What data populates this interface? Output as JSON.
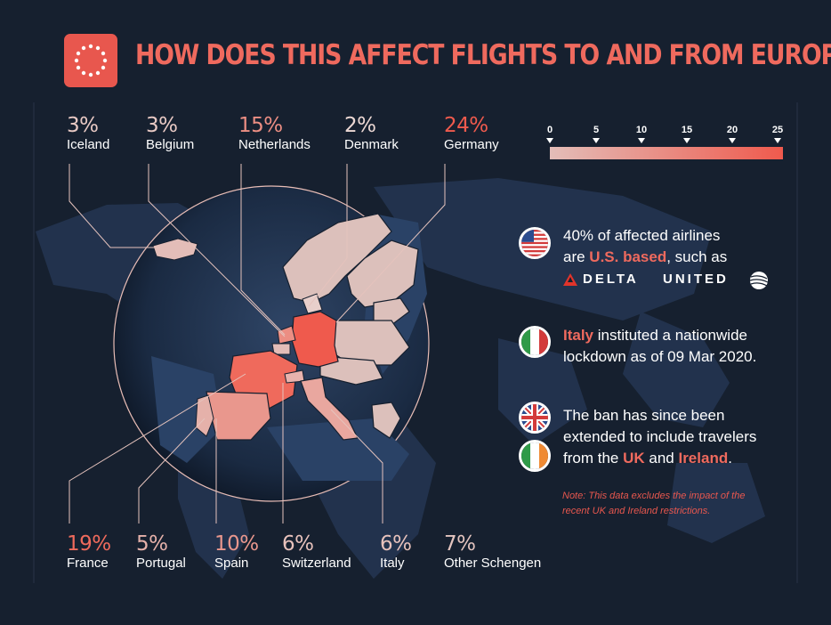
{
  "title": "HOW DOES THIS AFFECT FLIGHTS TO AND FROM EUROPE?",
  "colors": {
    "background": "#16202f",
    "accent": "#ef6a5e",
    "scale_low": "#e3bdb8",
    "scale_high": "#ef5a4d"
  },
  "icons": {
    "badge": "eu-stars-icon",
    "usa": "usa-flag-icon",
    "italy": "italy-flag-icon",
    "uk": "uk-flag-icon",
    "ireland": "ireland-flag-icon",
    "delta": "delta-logo-icon",
    "united": "united-globe-icon"
  },
  "chart_data": {
    "type": "choropleth-map",
    "unit": "%",
    "categories": [
      "Iceland",
      "Belgium",
      "Netherlands",
      "Denmark",
      "Germany",
      "France",
      "Portugal",
      "Spain",
      "Switzerland",
      "Italy",
      "Other Schengen"
    ],
    "values": [
      3,
      3,
      15,
      2,
      24,
      19,
      5,
      10,
      6,
      6,
      7
    ],
    "labels_top": [
      {
        "country": "Iceland",
        "pct": "3%",
        "value": 3
      },
      {
        "country": "Belgium",
        "pct": "3%",
        "value": 3
      },
      {
        "country": "Netherlands",
        "pct": "15%",
        "value": 15
      },
      {
        "country": "Denmark",
        "pct": "2%",
        "value": 2
      },
      {
        "country": "Germany",
        "pct": "24%",
        "value": 24
      }
    ],
    "labels_bottom": [
      {
        "country": "France",
        "pct": "19%",
        "value": 19
      },
      {
        "country": "Portugal",
        "pct": "5%",
        "value": 5
      },
      {
        "country": "Spain",
        "pct": "10%",
        "value": 10
      },
      {
        "country": "Switzerland",
        "pct": "6%",
        "value": 6
      },
      {
        "country": "Italy",
        "pct": "6%",
        "value": 6
      },
      {
        "country": "Other Schengen",
        "pct": "7%",
        "value": 7
      }
    ],
    "color_scale": {
      "min": 0,
      "max": 25,
      "ticks": [
        "0",
        "5",
        "10",
        "15",
        "20",
        "25"
      ]
    }
  },
  "info": {
    "us": {
      "line1": "40% of affected airlines",
      "line2_pre": "are ",
      "line2_hl": "U.S. based",
      "line2_post": ", such as",
      "airline1": "DELTA",
      "airline2": "UNITED"
    },
    "italy": {
      "line1_hl": "Italy",
      "line1_post": " instituted a nationwide",
      "line2": "lockdown as of 09 Mar 2020."
    },
    "uk": {
      "line1": "The ban has since been",
      "line2": "extended to include travelers",
      "line3_pre": "from the ",
      "line3_hl1": "UK",
      "line3_mid": " and ",
      "line3_hl2": "Ireland",
      "line3_post": "."
    },
    "note_line1": "Note: This data excludes the impact of the",
    "note_line2": "recent UK and Ireland restrictions."
  }
}
